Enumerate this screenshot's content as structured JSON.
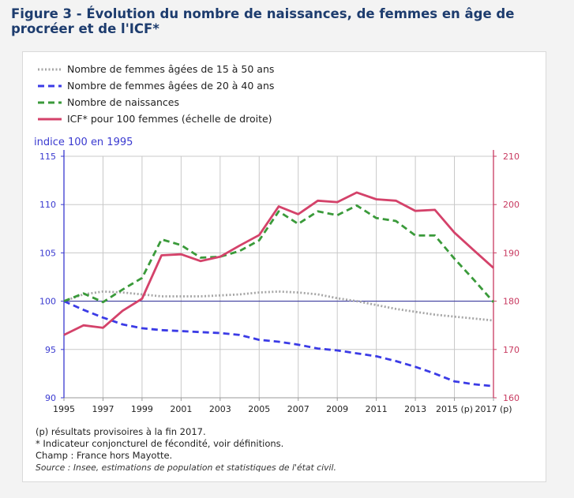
{
  "figure_title": "Figure 3 - Évolution du nombre de naissances, de femmes en âge de procréer et de l'ICF*",
  "colors": {
    "women_15_50": "#a6a6a6",
    "women_20_40": "#3b3be6",
    "births": "#3a9a3a",
    "icf": "#d4426a",
    "left_axis": "#3a3ad0",
    "right_axis": "#c83a60"
  },
  "chart_data": {
    "type": "line",
    "title": "Figure 3 - Évolution du nombre de naissances, de femmes en âge de procréer et de l'ICF*",
    "ylabel": "indice 100 en 1995",
    "ylim": [
      90,
      115
    ],
    "y2lim": [
      160,
      210
    ],
    "xlim": [
      1995,
      2017
    ],
    "yticks": [
      "115",
      "110",
      "105",
      "100",
      "95",
      "90"
    ],
    "y2ticks": [
      "210",
      "200",
      "190",
      "180",
      "170",
      "160"
    ],
    "xtick_labels": [
      {
        "year": 1995,
        "label": "1995"
      },
      {
        "year": 1997,
        "label": "1997"
      },
      {
        "year": 1999,
        "label": "1999"
      },
      {
        "year": 2001,
        "label": "2001"
      },
      {
        "year": 2003,
        "label": "2003"
      },
      {
        "year": 2005,
        "label": "2005"
      },
      {
        "year": 2007,
        "label": "2007"
      },
      {
        "year": 2009,
        "label": "2009"
      },
      {
        "year": 2011,
        "label": "2011"
      },
      {
        "year": 2013,
        "label": "2013"
      },
      {
        "year": 2015,
        "label": "2015 (p)"
      },
      {
        "year": 2017,
        "label": "2017 (p)"
      }
    ],
    "x": [
      1995,
      1996,
      1997,
      1998,
      1999,
      2000,
      2001,
      2002,
      2003,
      2004,
      2005,
      2006,
      2007,
      2008,
      2009,
      2010,
      2011,
      2012,
      2013,
      2014,
      2015,
      2016,
      2017
    ],
    "series": [
      {
        "name": "Nombre de femmes âgées de 15 à 50 ans",
        "key": "women_15_50",
        "axis": "left",
        "style": "dotted",
        "values": [
          100,
          100.7,
          101,
          100.9,
          100.7,
          100.5,
          100.5,
          100.5,
          100.6,
          100.7,
          100.9,
          101,
          100.9,
          100.7,
          100.3,
          100,
          99.6,
          99.2,
          98.9,
          98.6,
          98.4,
          98.2,
          98
        ]
      },
      {
        "name": "Nombre de femmes âgées de 20 à 40 ans",
        "key": "women_20_40",
        "axis": "left",
        "style": "dashed",
        "values": [
          100,
          99.1,
          98.3,
          97.6,
          97.2,
          97,
          96.9,
          96.8,
          96.7,
          96.5,
          96,
          95.8,
          95.5,
          95.1,
          94.9,
          94.6,
          94.3,
          93.8,
          93.2,
          92.5,
          91.7,
          91.4,
          91.2
        ]
      },
      {
        "name": "Nombre de naissances",
        "key": "births",
        "axis": "left",
        "style": "dashed",
        "values": [
          100,
          100.8,
          99.9,
          101.2,
          102.4,
          106.4,
          105.8,
          104.5,
          104.6,
          105.2,
          106.3,
          109.3,
          108,
          109.3,
          108.9,
          109.9,
          108.6,
          108.3,
          106.8,
          106.8,
          104.4,
          102.2,
          99.9
        ]
      },
      {
        "name": "ICF* pour 100 femmes (échelle de droite)",
        "key": "icf",
        "axis": "right",
        "style": "solid",
        "values": [
          173,
          175,
          174.5,
          178,
          180.5,
          189.5,
          189.7,
          188.3,
          189.2,
          191.5,
          193.7,
          199.6,
          198,
          200.8,
          200.5,
          202.5,
          201.1,
          200.8,
          198.7,
          198.9,
          194.2,
          190.5,
          186.9
        ]
      }
    ]
  },
  "notes": {
    "provisional": "(p) résultats provisoires à la fin 2017.",
    "icf_def": "* Indicateur conjoncturel de fécondité, voir définitions.",
    "scope": "Champ : France hors Mayotte.",
    "source": "Source : Insee, estimations de population et statistiques de l'état civil."
  }
}
